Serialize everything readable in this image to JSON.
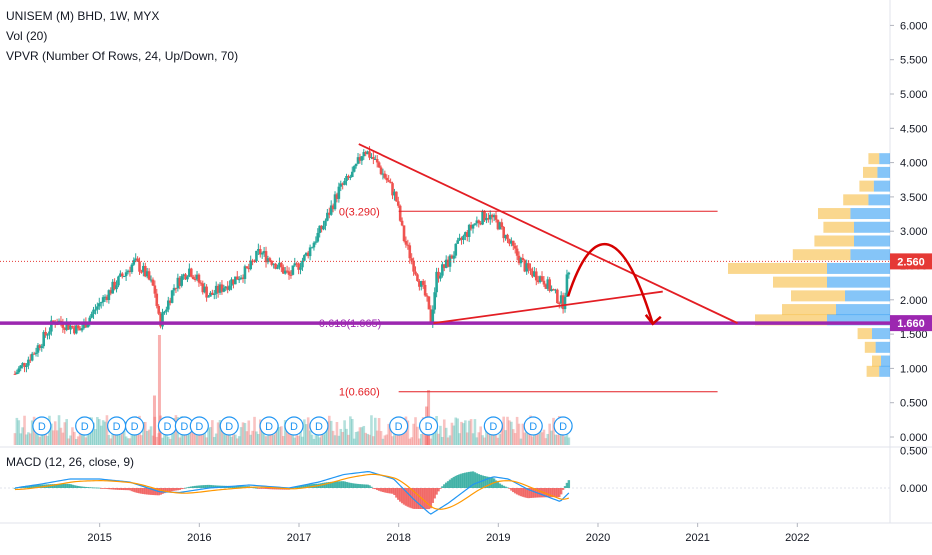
{
  "legend": {
    "symbol_line": "UNISEM (M) BHD, 1W, MYX",
    "vol_line": "Vol (20)",
    "vpvr_line": "VPVR (Number Of Rows, 24, Up/Down, 70)",
    "macd_line": "MACD (12, 26, close, 9)"
  },
  "colors": {
    "up": "#26a69a",
    "down": "#ef5350",
    "trend": "#e31e24",
    "support": "#9c27b0",
    "last_price": "#e53935",
    "support_tag": "#9c27b0",
    "vpvr_up": "#2196f3",
    "vpvr_down": "#f5b731",
    "macd": "#2196f3",
    "signal": "#ff9800"
  },
  "chart_data": {
    "type": "candlestick",
    "x_ticks": [
      "2015",
      "2016",
      "2017",
      "2018",
      "2019",
      "2020",
      "2021",
      "2022"
    ],
    "y_ticks": [
      "6.000",
      "5.500",
      "5.000",
      "4.500",
      "4.000",
      "3.500",
      "3.000",
      "2.500",
      "2.000",
      "1.500",
      "1.000",
      "0.500",
      "0.000"
    ],
    "ylim": [
      0.0,
      6.3
    ],
    "price_path": [
      [
        2014.15,
        0.92
      ],
      [
        2014.35,
        1.25
      ],
      [
        2014.55,
        1.7
      ],
      [
        2014.7,
        1.62
      ],
      [
        2014.8,
        1.55
      ],
      [
        2015.0,
        1.95
      ],
      [
        2015.2,
        2.3
      ],
      [
        2015.35,
        2.55
      ],
      [
        2015.45,
        2.4
      ],
      [
        2015.55,
        2.15
      ],
      [
        2015.6,
        1.65
      ],
      [
        2015.75,
        2.2
      ],
      [
        2015.9,
        2.45
      ],
      [
        2016.1,
        2.05
      ],
      [
        2016.3,
        2.25
      ],
      [
        2016.5,
        2.45
      ],
      [
        2016.6,
        2.7
      ],
      [
        2016.75,
        2.55
      ],
      [
        2016.9,
        2.35
      ],
      [
        2017.05,
        2.6
      ],
      [
        2017.25,
        3.1
      ],
      [
        2017.4,
        3.6
      ],
      [
        2017.55,
        3.85
      ],
      [
        2017.65,
        4.2
      ],
      [
        2017.75,
        4.05
      ],
      [
        2017.88,
        3.75
      ],
      [
        2017.97,
        3.5
      ],
      [
        2018.05,
        2.9
      ],
      [
        2018.15,
        2.5
      ],
      [
        2018.28,
        2.0
      ],
      [
        2018.32,
        1.66
      ],
      [
        2018.38,
        2.35
      ],
      [
        2018.5,
        2.55
      ],
      [
        2018.62,
        2.85
      ],
      [
        2018.75,
        3.1
      ],
      [
        2018.88,
        3.25
      ],
      [
        2019.0,
        3.1
      ],
      [
        2019.12,
        2.8
      ],
      [
        2019.28,
        2.45
      ],
      [
        2019.45,
        2.3
      ],
      [
        2019.58,
        2.05
      ],
      [
        2019.65,
        1.95
      ],
      [
        2019.72,
        2.56
      ]
    ],
    "drawings": {
      "fib_0_label": "0(3.290)",
      "fib_618_label": "0.618(1.665)",
      "fib_1_label": "1(0.660)",
      "fib_0_value": 3.29,
      "fib_618_value": 1.665,
      "fib_1_value": 0.66,
      "support_value": 1.66,
      "descending_trendline": [
        [
          2017.6,
          4.27
        ],
        [
          2021.4,
          1.66
        ]
      ],
      "ascending_trendline": [
        [
          2018.35,
          1.66
        ],
        [
          2020.65,
          2.12
        ]
      ],
      "forecast_arc": [
        [
          2019.7,
          2.05
        ],
        [
          2019.95,
          2.58
        ],
        [
          2020.25,
          2.35
        ],
        [
          2020.55,
          1.65
        ]
      ]
    },
    "last_price": "2.560",
    "support_price": "1.660",
    "dividend_marker_label": "D",
    "dividend_markers": [
      2014.42,
      2014.85,
      2015.17,
      2015.35,
      2015.68,
      2015.85,
      2016.0,
      2016.3,
      2016.7,
      2016.95,
      2017.2,
      2018.0,
      2018.3,
      2018.95,
      2019.35,
      2019.65
    ],
    "volume_spikes": [
      [
        2015.6,
        1.0
      ],
      [
        2018.3,
        0.5
      ],
      [
        2015.55,
        0.45
      ],
      [
        2018.28,
        0.35
      ]
    ],
    "vpvr": [
      {
        "price": 4.05,
        "up": 0.06,
        "down": 0.06
      },
      {
        "price": 3.85,
        "up": 0.07,
        "down": 0.08
      },
      {
        "price": 3.65,
        "up": 0.09,
        "down": 0.08
      },
      {
        "price": 3.45,
        "up": 0.12,
        "down": 0.14
      },
      {
        "price": 3.25,
        "up": 0.22,
        "down": 0.18
      },
      {
        "price": 3.05,
        "up": 0.2,
        "down": 0.17
      },
      {
        "price": 2.85,
        "up": 0.2,
        "down": 0.22
      },
      {
        "price": 2.65,
        "up": 0.22,
        "down": 0.32
      },
      {
        "price": 2.45,
        "up": 0.35,
        "down": 0.55
      },
      {
        "price": 2.25,
        "up": 0.35,
        "down": 0.3
      },
      {
        "price": 2.05,
        "up": 0.25,
        "down": 0.3
      },
      {
        "price": 1.85,
        "up": 0.3,
        "down": 0.3
      },
      {
        "price": 1.7,
        "up": 0.35,
        "down": 0.4
      },
      {
        "price": 1.5,
        "up": 0.1,
        "down": 0.08
      },
      {
        "price": 1.3,
        "up": 0.08,
        "down": 0.06
      },
      {
        "price": 1.1,
        "up": 0.05,
        "down": 0.05
      },
      {
        "price": 0.95,
        "up": 0.06,
        "down": 0.07
      }
    ],
    "macd_ticks": [
      "0.500",
      "0.000"
    ],
    "macd_path": [
      [
        2014.15,
        0.0
      ],
      [
        2014.4,
        0.05
      ],
      [
        2014.7,
        0.12
      ],
      [
        2015.0,
        0.12
      ],
      [
        2015.3,
        0.08
      ],
      [
        2015.6,
        -0.05
      ],
      [
        2015.8,
        -0.06
      ],
      [
        2016.1,
        0.0
      ],
      [
        2016.5,
        0.04
      ],
      [
        2016.9,
        0.0
      ],
      [
        2017.2,
        0.08
      ],
      [
        2017.45,
        0.18
      ],
      [
        2017.7,
        0.22
      ],
      [
        2017.95,
        0.12
      ],
      [
        2018.15,
        -0.15
      ],
      [
        2018.32,
        -0.35
      ],
      [
        2018.5,
        -0.2
      ],
      [
        2018.75,
        0.05
      ],
      [
        2018.95,
        0.15
      ],
      [
        2019.1,
        0.12
      ],
      [
        2019.3,
        -0.02
      ],
      [
        2019.5,
        -0.12
      ],
      [
        2019.62,
        -0.18
      ],
      [
        2019.72,
        -0.05
      ]
    ]
  }
}
